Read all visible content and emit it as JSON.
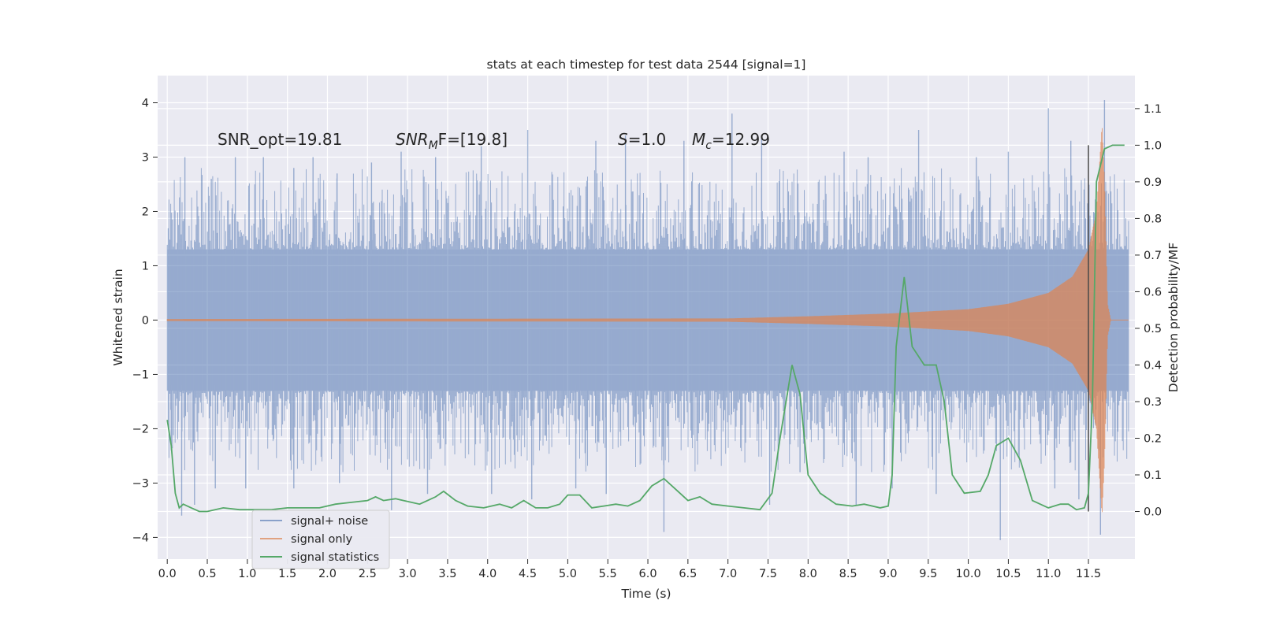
{
  "chart_data": {
    "type": "line",
    "title": "stats at each timestep for test data 2544 [signal=1]",
    "xlabel": "Time (s)",
    "ylabel_left": "Whitened strain",
    "ylabel_right": "Detection probability/MF",
    "xlim": [
      -0.12,
      12.08
    ],
    "ylim_left": [
      -4.4,
      4.5
    ],
    "ylim_right": [
      -0.13,
      1.19
    ],
    "x_ticks": [
      0.0,
      0.5,
      1.0,
      1.5,
      2.0,
      2.5,
      3.0,
      3.5,
      4.0,
      4.5,
      5.0,
      5.5,
      6.0,
      6.5,
      7.0,
      7.5,
      8.0,
      8.5,
      9.0,
      9.5,
      10.0,
      10.5,
      11.0,
      11.5
    ],
    "x_tick_labels": [
      "0.0",
      "0.5",
      "1.0",
      "1.5",
      "2.0",
      "2.5",
      "3.0",
      "3.5",
      "4.0",
      "4.5",
      "5.0",
      "5.5",
      "6.0",
      "6.5",
      "7.0",
      "7.5",
      "8.0",
      "8.5",
      "9.0",
      "9.5",
      "10.0",
      "10.5",
      "11.0",
      "11.5"
    ],
    "y_left_ticks": [
      4,
      3,
      2,
      1,
      0,
      -1,
      -2,
      -3,
      -4
    ],
    "y_left_tick_labels": [
      "4",
      "3",
      "2",
      "1",
      "0",
      "−1",
      "−2",
      "−3",
      "−4"
    ],
    "y_right_ticks": [
      1.1,
      1.0,
      0.9,
      0.8,
      0.7,
      0.6,
      0.5,
      0.4,
      0.3,
      0.2,
      0.1,
      0.0
    ],
    "y_right_tick_labels": [
      "1.1",
      "1.0",
      "0.9",
      "0.8",
      "0.7",
      "0.6",
      "0.5",
      "0.4",
      "0.3",
      "0.2",
      "0.1",
      "0.0"
    ],
    "grid": true,
    "legend_position": "lower-left",
    "annotations": {
      "snr_opt": "SNR_opt=19.81",
      "snr_mf_main": "SNR",
      "snr_mf_sub": "M",
      "snr_mf_rest": "F=[19.8]",
      "s_main": "S",
      "s_rest": "=1.0",
      "mc_main": "M",
      "mc_sub": "c",
      "mc_rest": "=12.99"
    },
    "vertical_marker": {
      "x": 11.5,
      "y_range": [
        0.0,
        1.0
      ]
    },
    "series": [
      {
        "name": "signal+ noise",
        "axis": "left",
        "color": "#4c72b0",
        "x_range": [
          0.0,
          12.0
        ],
        "band": [
          -1.3,
          1.3
        ],
        "description_peaks": [
          [
            0.22,
            3.0
          ],
          [
            0.55,
            2.6
          ],
          [
            0.85,
            3.0
          ],
          [
            1.2,
            3.0
          ],
          [
            1.58,
            2.8
          ],
          [
            1.82,
            3.0
          ],
          [
            2.12,
            2.7
          ],
          [
            2.55,
            2.9
          ],
          [
            2.92,
            3.1
          ],
          [
            3.35,
            3.0
          ],
          [
            3.92,
            3.2
          ],
          [
            4.5,
            3.5
          ],
          [
            5.35,
            3.3
          ],
          [
            5.72,
            3.4
          ],
          [
            6.45,
            3.3
          ],
          [
            7.05,
            3.8
          ],
          [
            7.42,
            3.4
          ],
          [
            8.45,
            3.1
          ],
          [
            8.75,
            3.0
          ],
          [
            9.38,
            3.5
          ],
          [
            10.1,
            3.0
          ],
          [
            10.5,
            3.1
          ],
          [
            11.0,
            3.9
          ],
          [
            11.28,
            3.3
          ],
          [
            11.7,
            4.05
          ]
        ],
        "description_troughs": [
          [
            0.05,
            -2.4
          ],
          [
            0.18,
            -3.6
          ],
          [
            0.34,
            -3.4
          ],
          [
            0.6,
            -3.1
          ],
          [
            0.98,
            -3.1
          ],
          [
            1.58,
            -3.1
          ],
          [
            2.15,
            -3.0
          ],
          [
            2.8,
            -3.5
          ],
          [
            3.25,
            -3.2
          ],
          [
            4.05,
            -3.2
          ],
          [
            4.55,
            -3.3
          ],
          [
            5.1,
            -3.1
          ],
          [
            5.48,
            -3.2
          ],
          [
            6.2,
            -3.9
          ],
          [
            7.52,
            -3.4
          ],
          [
            7.9,
            -2.8
          ],
          [
            8.6,
            -3.4
          ],
          [
            9.05,
            -3.1
          ],
          [
            9.6,
            -3.2
          ],
          [
            10.4,
            -4.05
          ],
          [
            11.08,
            -3.1
          ],
          [
            11.38,
            -3.3
          ],
          [
            11.65,
            -3.95
          ]
        ]
      },
      {
        "name": "signal only",
        "axis": "left",
        "color": "#dd8452",
        "x_range": [
          0.0,
          12.0
        ],
        "envelope": [
          [
            0.0,
            0.02
          ],
          [
            7.0,
            0.03
          ],
          [
            8.0,
            0.07
          ],
          [
            9.0,
            0.12
          ],
          [
            9.5,
            0.16
          ],
          [
            10.0,
            0.2
          ],
          [
            10.5,
            0.3
          ],
          [
            11.0,
            0.5
          ],
          [
            11.3,
            0.8
          ],
          [
            11.5,
            1.3
          ],
          [
            11.6,
            2.0
          ],
          [
            11.67,
            3.6
          ],
          [
            11.7,
            2.6
          ],
          [
            11.74,
            0.3
          ],
          [
            11.78,
            0.0
          ],
          [
            12.0,
            0.0
          ]
        ]
      },
      {
        "name": "signal statistics",
        "axis": "right",
        "color": "#55a868",
        "x": [
          0.0,
          0.05,
          0.1,
          0.15,
          0.2,
          0.3,
          0.4,
          0.5,
          0.7,
          0.9,
          1.1,
          1.3,
          1.5,
          1.6,
          1.75,
          1.9,
          2.1,
          2.3,
          2.5,
          2.6,
          2.7,
          2.85,
          2.95,
          3.15,
          3.35,
          3.45,
          3.6,
          3.75,
          3.95,
          4.15,
          4.3,
          4.45,
          4.6,
          4.75,
          4.9,
          5.0,
          5.15,
          5.3,
          5.45,
          5.6,
          5.75,
          5.9,
          6.05,
          6.2,
          6.35,
          6.5,
          6.65,
          6.8,
          7.0,
          7.2,
          7.4,
          7.55,
          7.65,
          7.8,
          7.9,
          8.0,
          8.15,
          8.35,
          8.55,
          8.7,
          8.9,
          9.0,
          9.05,
          9.1,
          9.2,
          9.3,
          9.45,
          9.6,
          9.7,
          9.8,
          9.95,
          10.15,
          10.25,
          10.35,
          10.5,
          10.65,
          10.8,
          11.0,
          11.15,
          11.25,
          11.35,
          11.45,
          11.5,
          11.55,
          11.6,
          11.7,
          11.8,
          11.95
        ],
        "values": [
          0.25,
          0.18,
          0.05,
          0.01,
          0.02,
          0.01,
          0.0,
          0.0,
          0.01,
          0.005,
          0.005,
          0.005,
          0.01,
          0.01,
          0.01,
          0.01,
          0.02,
          0.025,
          0.03,
          0.04,
          0.03,
          0.035,
          0.03,
          0.02,
          0.04,
          0.055,
          0.03,
          0.015,
          0.01,
          0.02,
          0.01,
          0.03,
          0.01,
          0.01,
          0.02,
          0.045,
          0.045,
          0.01,
          0.015,
          0.02,
          0.015,
          0.03,
          0.07,
          0.09,
          0.06,
          0.03,
          0.04,
          0.02,
          0.015,
          0.01,
          0.005,
          0.05,
          0.2,
          0.4,
          0.32,
          0.1,
          0.05,
          0.02,
          0.015,
          0.02,
          0.01,
          0.015,
          0.1,
          0.45,
          0.64,
          0.45,
          0.4,
          0.4,
          0.3,
          0.1,
          0.05,
          0.055,
          0.1,
          0.18,
          0.2,
          0.14,
          0.03,
          0.01,
          0.02,
          0.02,
          0.005,
          0.01,
          0.05,
          0.3,
          0.9,
          0.99,
          1.0,
          1.0
        ]
      }
    ]
  }
}
